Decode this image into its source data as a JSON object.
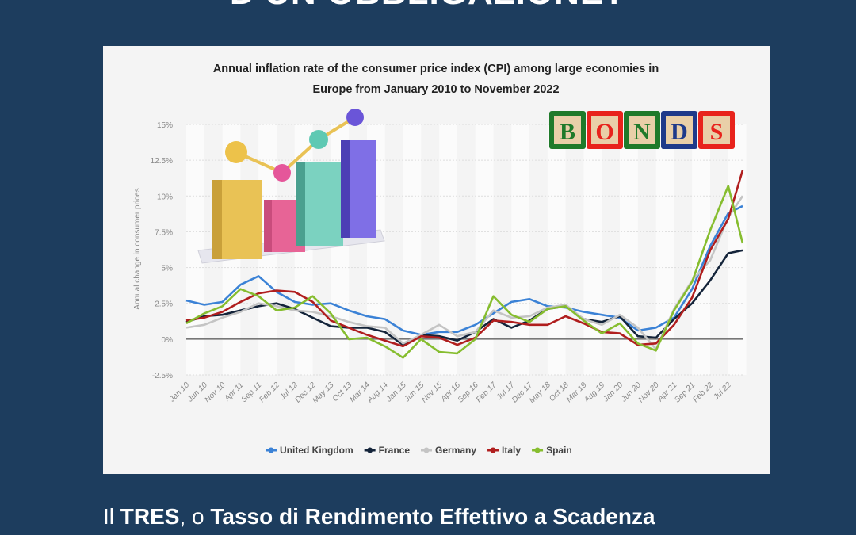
{
  "headline": "D'UN OBBLIGAZIONE?",
  "bottom_text": {
    "part1": "Il ",
    "part2": "TRES",
    "part3": ", o ",
    "part4": "Tasso di Rendimento Effettivo a Scadenza"
  },
  "overlay": {
    "bonds_letters": [
      "B",
      "O",
      "N",
      "D",
      "S"
    ],
    "bonds_colors": [
      "#1f7a2a",
      "#e8231c",
      "#1f7a2a",
      "#1f3a8a",
      "#e8231c"
    ]
  },
  "chart_data": {
    "type": "line",
    "title": "Annual inflation rate of the consumer price index (CPI) among large economies in Europe from January 2010 to November 2022",
    "title_lines": [
      "Annual inflation rate of the consumer price index (CPI) among large economies in",
      "Europe from January 2010 to November 2022"
    ],
    "xlabel": "",
    "ylabel": "Annual change in consumer prices",
    "ylim": [
      -2.5,
      15
    ],
    "yticks": [
      -2.5,
      0,
      2.5,
      5,
      7.5,
      10,
      12.5,
      15
    ],
    "ytick_labels": [
      "-2.5%",
      "0%",
      "2.5%",
      "5%",
      "7.5%",
      "10%",
      "12.5%",
      "15%"
    ],
    "grid": true,
    "legend": "bottom",
    "x": [
      "Jan 10",
      "Jun 10",
      "Nov 10",
      "Apr 11",
      "Sep 11",
      "Feb 12",
      "Jul 12",
      "Dec 12",
      "May 13",
      "Oct 13",
      "Mar 14",
      "Aug 14",
      "Jan 15",
      "Jun 15",
      "Nov 15",
      "Apr 16",
      "Sep 16",
      "Feb 17",
      "Jul 17",
      "Dec 17",
      "May 18",
      "Oct 18",
      "Mar 19",
      "Aug 19",
      "Jan 20",
      "Jun 20",
      "Nov 20",
      "Apr 21",
      "Sep 21",
      "Feb 22",
      "Jul 22",
      "Nov 22"
    ],
    "xtick_labels": [
      "Jan 10",
      "Jun 10",
      "Nov 10",
      "Apr 11",
      "Sep 11",
      "Feb 12",
      "Jul 12",
      "Dec 12",
      "May 13",
      "Oct 13",
      "Mar 14",
      "Aug 14",
      "Jan 15",
      "Jun 15",
      "Nov 15",
      "Apr 16",
      "Sep 16",
      "Feb 17",
      "Jul 17",
      "Dec 17",
      "May 18",
      "Oct 18",
      "Mar 19",
      "Aug 19",
      "Jan 20",
      "Jun 20",
      "Nov 20",
      "Apr 21",
      "Sep 21",
      "Feb 22",
      "Jul 22"
    ],
    "series": [
      {
        "name": "United Kingdom",
        "color": "#3b82d6",
        "values": [
          2.7,
          2.4,
          2.6,
          3.8,
          4.4,
          3.3,
          2.6,
          2.4,
          2.5,
          2.0,
          1.6,
          1.4,
          0.6,
          0.3,
          0.5,
          0.5,
          1.0,
          1.8,
          2.6,
          2.8,
          2.3,
          2.2,
          1.9,
          1.7,
          1.5,
          0.6,
          0.8,
          1.5,
          3.5,
          6.5,
          8.8,
          9.3
        ]
      },
      {
        "name": "France",
        "color": "#14243a",
        "values": [
          1.2,
          1.6,
          1.7,
          2.0,
          2.3,
          2.5,
          2.1,
          1.5,
          0.9,
          0.8,
          0.8,
          0.5,
          -0.4,
          0.3,
          0.2,
          -0.1,
          0.5,
          1.4,
          0.8,
          1.3,
          2.1,
          2.3,
          1.4,
          1.2,
          1.6,
          0.2,
          0.1,
          1.4,
          2.5,
          4.1,
          6.0,
          6.2
        ]
      },
      {
        "name": "Germany",
        "color": "#c4c4c4",
        "values": [
          0.8,
          1.0,
          1.5,
          1.9,
          2.5,
          2.3,
          2.0,
          1.9,
          1.6,
          1.2,
          0.9,
          0.8,
          -0.3,
          0.3,
          1.0,
          0.2,
          0.5,
          2.0,
          1.5,
          1.6,
          2.2,
          2.4,
          1.4,
          1.0,
          1.7,
          0.8,
          -0.7,
          2.1,
          4.1,
          5.5,
          8.5,
          10.0
        ]
      },
      {
        "name": "Italy",
        "color": "#b01e1e",
        "values": [
          1.3,
          1.5,
          1.9,
          2.6,
          3.2,
          3.4,
          3.3,
          2.6,
          1.3,
          0.8,
          0.3,
          -0.1,
          -0.5,
          0.2,
          0.1,
          -0.4,
          0.1,
          1.3,
          1.2,
          1.0,
          1.0,
          1.6,
          1.1,
          0.5,
          0.4,
          -0.4,
          -0.3,
          1.0,
          2.9,
          6.2,
          8.4,
          11.8
        ]
      },
      {
        "name": "Spain",
        "color": "#86bd2f",
        "values": [
          1.1,
          1.8,
          2.3,
          3.5,
          3.0,
          2.0,
          2.2,
          3.0,
          1.8,
          0.0,
          0.1,
          -0.5,
          -1.3,
          0.0,
          -0.9,
          -1.0,
          0.0,
          3.0,
          1.7,
          1.2,
          2.1,
          2.3,
          1.3,
          0.4,
          1.1,
          -0.3,
          -0.8,
          2.0,
          4.0,
          7.6,
          10.7,
          6.7
        ]
      }
    ]
  }
}
